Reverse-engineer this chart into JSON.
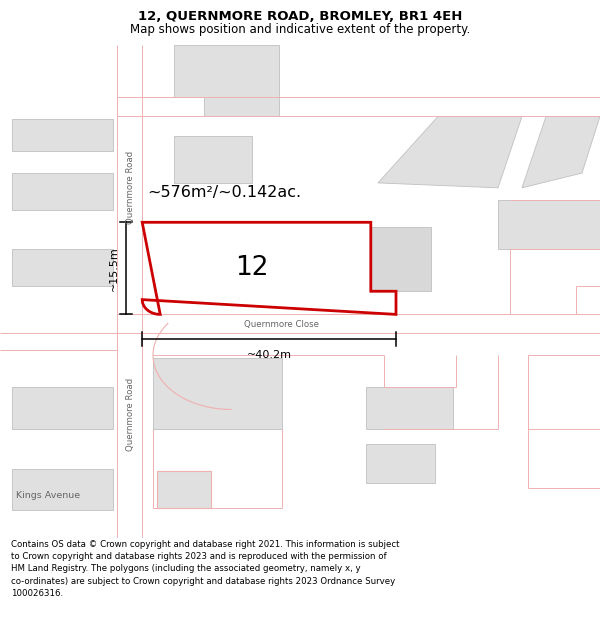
{
  "title": "12, QUERNMORE ROAD, BROMLEY, BR1 4EH",
  "subtitle": "Map shows position and indicative extent of the property.",
  "footer": "Contains OS data © Crown copyright and database right 2021. This information is subject\nto Crown copyright and database rights 2023 and is reproduced with the permission of\nHM Land Registry. The polygons (including the associated geometry, namely x, y\nco-ordinates) are subject to Crown copyright and database rights 2023 Ordnance Survey\n100026316.",
  "map_bg": "#f7f7f7",
  "road_color": "#f0b0b0",
  "building_fill": "#e0e0e0",
  "building_edge": "#c0c0c0",
  "highlight_fill": "#ffffff",
  "highlight_edge": "#cc0000",
  "area_text": "~576m²/~0.142ac.",
  "label_12": "12",
  "width_label": "~40.2m",
  "height_label": "~15.5m",
  "street_qr_top": "Quernmore Road",
  "street_qr_bot": "Quernmore Road",
  "street_qc": "Quernmore Close",
  "street_ka": "Kings Avenue",
  "title_fontsize": 9.5,
  "subtitle_fontsize": 8.5,
  "footer_fontsize": 6.2,
  "fig_width": 6.0,
  "fig_height": 6.25,
  "dpi": 100
}
